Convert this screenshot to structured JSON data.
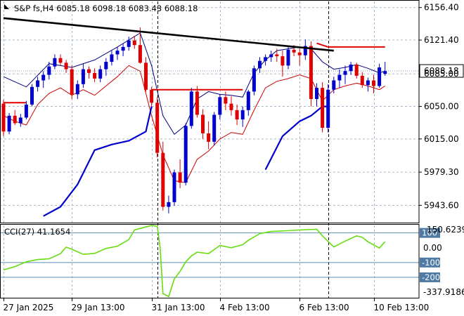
{
  "chart_data": [
    {
      "type": "candlestick",
      "header": {
        "symbol": "S&P fs",
        "timeframe": "H4",
        "open": "6085.18",
        "high": "6098.18",
        "low": "6083.43",
        "close": "6088.18"
      },
      "current_price_label": "6088.18",
      "ylim": [
        5925,
        6163
      ],
      "y_ticks": [
        "6156.40",
        "6121.40",
        "6085.00",
        "6050.00",
        "6015.00",
        "5979.30",
        "5943.60"
      ],
      "x_tick_labels": [
        "27 Jan 2025",
        "29 Jan 13:00",
        "31 Jan 13:00",
        "4 Feb 13:00",
        "6 Feb 13:00",
        "10 Feb 13:00"
      ],
      "colors": {
        "bull": "#0000cc",
        "bear": "#e00000",
        "trendline": "#000000",
        "envelope_upper": "#000080",
        "envelope_lower": "#cc0000",
        "support_line": "#0000cc",
        "resistance_line": "#e00000"
      },
      "candles": [
        [
          6053,
          6057,
          6018,
          6023
        ],
        [
          6023,
          6043,
          6020,
          6040
        ],
        [
          6040,
          6046,
          6030,
          6032
        ],
        [
          6032,
          6042,
          6028,
          6038
        ],
        [
          6038,
          6056,
          6036,
          6052
        ],
        [
          6052,
          6074,
          6050,
          6071
        ],
        [
          6071,
          6082,
          6066,
          6078
        ],
        [
          6078,
          6088,
          6070,
          6084
        ],
        [
          6084,
          6098,
          6079,
          6093
        ],
        [
          6093,
          6106,
          6090,
          6102
        ],
        [
          6102,
          6106,
          6094,
          6097
        ],
        [
          6097,
          6100,
          6086,
          6090
        ],
        [
          6090,
          6094,
          6058,
          6063
        ],
        [
          6063,
          6078,
          6058,
          6074
        ],
        [
          6074,
          6096,
          6070,
          6090
        ],
        [
          6090,
          6093,
          6080,
          6086
        ],
        [
          6086,
          6091,
          6076,
          6080
        ],
        [
          6080,
          6094,
          6076,
          6090
        ],
        [
          6090,
          6102,
          6083,
          6098
        ],
        [
          6098,
          6110,
          6094,
          6106
        ],
        [
          6106,
          6114,
          6100,
          6110
        ],
        [
          6110,
          6118,
          6104,
          6114
        ],
        [
          6114,
          6125,
          6110,
          6121
        ],
        [
          6121,
          6126,
          6112,
          6116
        ],
        [
          6116,
          6135,
          6096,
          6097
        ],
        [
          6097,
          6103,
          6066,
          6068
        ],
        [
          6068,
          6071,
          6050,
          6054
        ],
        [
          6054,
          6060,
          5995,
          6000
        ],
        [
          6000,
          6012,
          5938,
          5942
        ],
        [
          5942,
          5954,
          5935,
          5947
        ],
        [
          5947,
          5982,
          5943,
          5979
        ],
        [
          5979,
          5993,
          5962,
          5968
        ],
        [
          5968,
          6032,
          5965,
          6029
        ],
        [
          6029,
          6070,
          6026,
          6066
        ],
        [
          6066,
          6072,
          6038,
          6041
        ],
        [
          6041,
          6047,
          6015,
          6021
        ],
        [
          6021,
          6034,
          6004,
          6012
        ],
        [
          6012,
          6044,
          6008,
          6041
        ],
        [
          6041,
          6063,
          6036,
          6060
        ],
        [
          6060,
          6066,
          6046,
          6053
        ],
        [
          6053,
          6061,
          6040,
          6046
        ],
        [
          6046,
          6052,
          6030,
          6036
        ],
        [
          6036,
          6050,
          6028,
          6046
        ],
        [
          6046,
          6068,
          6040,
          6066
        ],
        [
          6066,
          6094,
          6062,
          6091
        ],
        [
          6091,
          6103,
          6086,
          6099
        ],
        [
          6099,
          6106,
          6094,
          6103
        ],
        [
          6103,
          6110,
          6098,
          6106
        ],
        [
          6106,
          6112,
          6098,
          6104
        ],
        [
          6104,
          6110,
          6082,
          6094
        ],
        [
          6094,
          6114,
          6090,
          6111
        ],
        [
          6111,
          6116,
          6104,
          6108
        ],
        [
          6108,
          6112,
          6094,
          6105
        ],
        [
          6105,
          6122,
          6100,
          6115
        ],
        [
          6115,
          6120,
          6050,
          6058
        ],
        [
          6058,
          6075,
          6050,
          6070
        ],
        [
          6070,
          6076,
          6022,
          6027
        ],
        [
          6027,
          6074,
          6022,
          6068
        ],
        [
          6068,
          6082,
          6064,
          6078
        ],
        [
          6078,
          6090,
          6070,
          6084
        ],
        [
          6084,
          6094,
          6074,
          6088
        ],
        [
          6088,
          6098,
          6084,
          6095
        ],
        [
          6095,
          6097,
          6080,
          6083
        ],
        [
          6083,
          6087,
          6070,
          6073
        ],
        [
          6073,
          6081,
          6066,
          6078
        ],
        [
          6078,
          6084,
          6064,
          6072
        ],
        [
          6072,
          6096,
          6070,
          6092
        ],
        [
          6085,
          6098,
          6083,
          6088
        ]
      ],
      "envelope_upper": [
        [
          0,
          6082
        ],
        [
          4,
          6071
        ],
        [
          8,
          6096
        ],
        [
          12,
          6092
        ],
        [
          16,
          6100
        ],
        [
          20,
          6114
        ],
        [
          24,
          6129
        ],
        [
          26,
          6094
        ],
        [
          28,
          6040
        ],
        [
          30,
          6020
        ],
        [
          32,
          6030
        ],
        [
          34,
          6058
        ],
        [
          36,
          6066
        ],
        [
          38,
          6063
        ],
        [
          40,
          6062
        ],
        [
          42,
          6060
        ],
        [
          44,
          6086
        ],
        [
          46,
          6100
        ],
        [
          48,
          6110
        ],
        [
          50,
          6112
        ],
        [
          52,
          6114
        ],
        [
          54,
          6112
        ],
        [
          56,
          6098
        ],
        [
          58,
          6090
        ],
        [
          60,
          6092
        ],
        [
          62,
          6095
        ],
        [
          64,
          6091
        ],
        [
          66,
          6086
        ],
        [
          67,
          6088
        ]
      ],
      "envelope_lower": [
        [
          0,
          6040
        ],
        [
          2,
          6034
        ],
        [
          4,
          6030
        ],
        [
          6,
          6052
        ],
        [
          8,
          6064
        ],
        [
          10,
          6070
        ],
        [
          12,
          6062
        ],
        [
          14,
          6068
        ],
        [
          16,
          6062
        ],
        [
          18,
          6072
        ],
        [
          20,
          6082
        ],
        [
          22,
          6094
        ],
        [
          24,
          6088
        ],
        [
          25,
          6064
        ],
        [
          26,
          6040
        ],
        [
          28,
          5998
        ],
        [
          30,
          5970
        ],
        [
          32,
          5968
        ],
        [
          34,
          5993
        ],
        [
          36,
          6002
        ],
        [
          38,
          6015
        ],
        [
          40,
          6022
        ],
        [
          42,
          6020
        ],
        [
          44,
          6046
        ],
        [
          46,
          6070
        ],
        [
          48,
          6077
        ],
        [
          50,
          6080
        ],
        [
          52,
          6084
        ],
        [
          54,
          6080
        ],
        [
          56,
          6056
        ],
        [
          58,
          6068
        ],
        [
          60,
          6072
        ],
        [
          62,
          6075
        ],
        [
          64,
          6072
        ],
        [
          66,
          6068
        ],
        [
          67,
          6072
        ]
      ],
      "support_segments": [
        [
          [
            7,
            5932
          ],
          [
            10,
            5942
          ],
          [
            13,
            5966
          ],
          [
            16,
            6003
          ],
          [
            19,
            6009
          ],
          [
            22,
            6013
          ],
          [
            25,
            6023
          ],
          [
            26,
            6050
          ]
        ],
        [
          [
            46,
            5982
          ],
          [
            49,
            6018
          ],
          [
            52,
            6034
          ],
          [
            54,
            6040
          ],
          [
            56,
            6050
          ],
          [
            57,
            6050
          ]
        ]
      ],
      "resistance_segments": [
        [
          [
            0,
            6054
          ],
          [
            4,
            6054
          ]
        ],
        [
          [
            26,
            6068
          ],
          [
            42,
            6068
          ]
        ],
        [
          [
            55,
            6118
          ],
          [
            57,
            6114
          ],
          [
            67,
            6114
          ]
        ]
      ],
      "trendline": [
        [
          0,
          6145
        ],
        [
          58,
          6110
        ]
      ],
      "vertical_markers": [
        27,
        57
      ]
    },
    {
      "type": "line",
      "header": {
        "name": "CCI(27)",
        "value": "41.1654"
      },
      "ylim": [
        -337.9186,
        150.6239
      ],
      "y_ticks": [
        "150.6239",
        "0.00",
        "-337.9186"
      ],
      "levels": [
        100,
        -100,
        -200
      ],
      "level_labels": [
        "100",
        "-100",
        "-200"
      ],
      "line_color": "#66dd11",
      "values": [
        [
          0,
          -150
        ],
        [
          2,
          -128
        ],
        [
          4,
          -95
        ],
        [
          6,
          -80
        ],
        [
          8,
          -75
        ],
        [
          10,
          -40
        ],
        [
          11,
          4
        ],
        [
          12,
          -10
        ],
        [
          14,
          -45
        ],
        [
          16,
          -38
        ],
        [
          18,
          -5
        ],
        [
          20,
          10
        ],
        [
          22,
          55
        ],
        [
          23,
          120
        ],
        [
          26,
          150
        ],
        [
          27,
          145
        ],
        [
          27.5,
          0
        ],
        [
          28,
          -310
        ],
        [
          29,
          -330
        ],
        [
          30,
          -210
        ],
        [
          31,
          -160
        ],
        [
          32,
          -95
        ],
        [
          33,
          -55
        ],
        [
          34,
          -30
        ],
        [
          36,
          -40
        ],
        [
          38,
          15
        ],
        [
          40,
          0
        ],
        [
          42,
          20
        ],
        [
          43,
          50
        ],
        [
          45,
          95
        ],
        [
          47,
          110
        ],
        [
          50,
          115
        ],
        [
          52,
          120
        ],
        [
          55,
          125
        ],
        [
          56,
          80
        ],
        [
          58,
          5
        ],
        [
          60,
          45
        ],
        [
          62,
          80
        ],
        [
          63,
          70
        ],
        [
          64,
          40
        ],
        [
          66,
          -2
        ],
        [
          67,
          41
        ]
      ]
    }
  ]
}
